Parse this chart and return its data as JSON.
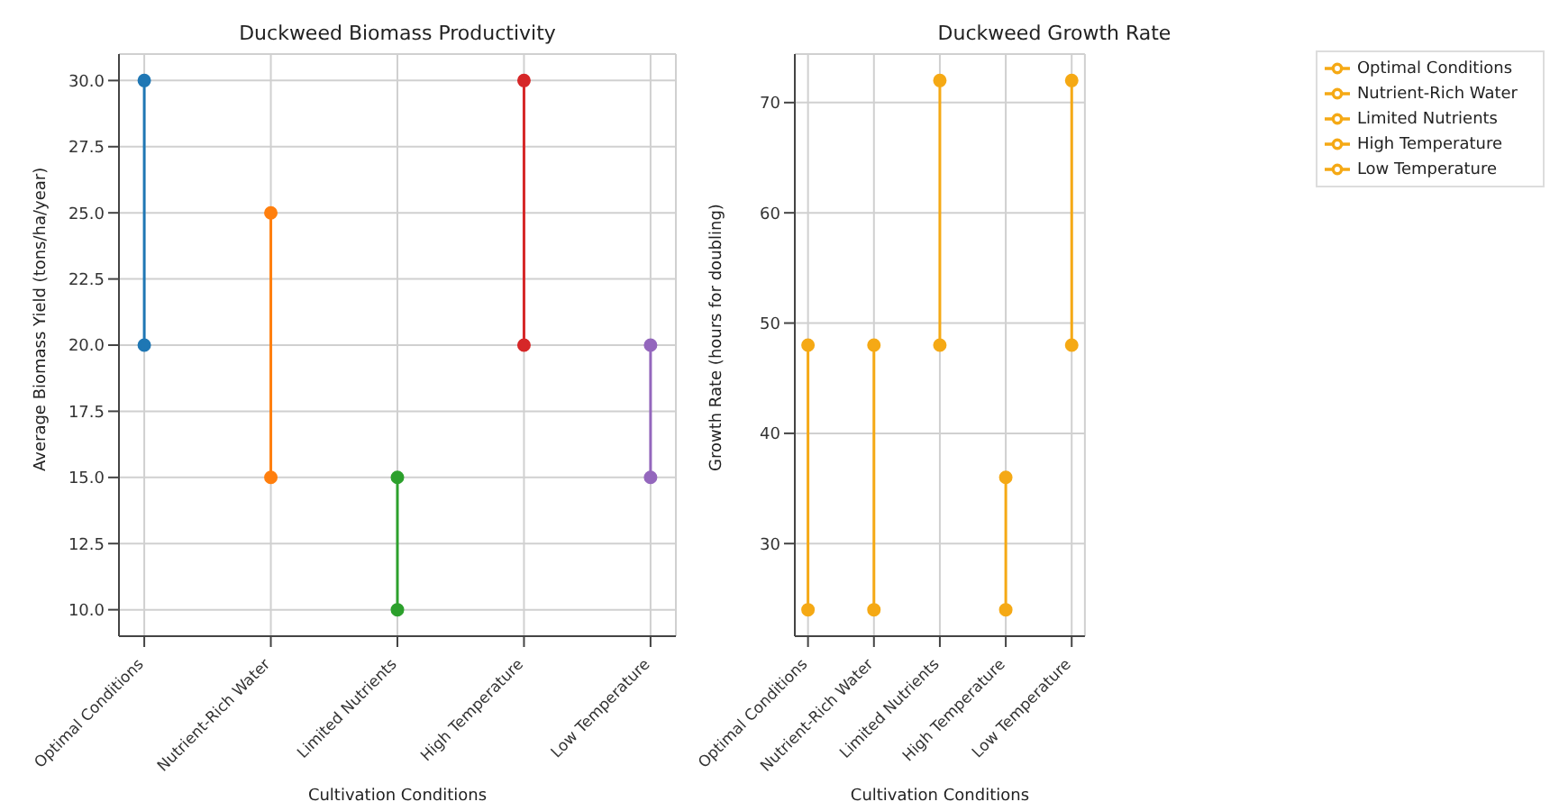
{
  "chart_data": [
    {
      "type": "line",
      "title": "Duckweed Biomass Productivity",
      "xlabel": "Cultivation Conditions",
      "ylabel": "Average Biomass Yield (tons/ha/year)",
      "categories": [
        "Optimal Conditions",
        "Nutrient-Rich Water",
        "Limited Nutrients",
        "High Temperature",
        "Low Temperature"
      ],
      "ylim": [
        9,
        31
      ],
      "yticks": [
        {
          "value": 10,
          "label": "10.0"
        },
        {
          "value": 12.5,
          "label": "12.5"
        },
        {
          "value": 15,
          "label": "15.0"
        },
        {
          "value": 17.5,
          "label": "17.5"
        },
        {
          "value": 20,
          "label": "20.0"
        },
        {
          "value": 22.5,
          "label": "22.5"
        },
        {
          "value": 25,
          "label": "25.0"
        },
        {
          "value": 27.5,
          "label": "27.5"
        },
        {
          "value": 30,
          "label": "30.0"
        }
      ],
      "grid": true,
      "marker": "circle",
      "legend": false,
      "series": [
        {
          "color": "#1f77b4",
          "x": [
            "Optimal Conditions",
            "Optimal Conditions"
          ],
          "values": [
            20,
            30
          ]
        },
        {
          "color": "#ff7f0e",
          "x": [
            "Nutrient-Rich Water",
            "Nutrient-Rich Water"
          ],
          "values": [
            15,
            25
          ]
        },
        {
          "color": "#2ca02c",
          "x": [
            "Limited Nutrients",
            "Limited Nutrients"
          ],
          "values": [
            10,
            15
          ]
        },
        {
          "color": "#d62728",
          "x": [
            "High Temperature",
            "High Temperature"
          ],
          "values": [
            20,
            30
          ]
        },
        {
          "color": "#9467bd",
          "x": [
            "Low Temperature",
            "Low Temperature"
          ],
          "values": [
            15,
            20
          ]
        }
      ]
    },
    {
      "type": "line",
      "title": "Duckweed Growth Rate",
      "xlabel": "Cultivation Conditions",
      "ylabel": "Growth Rate (hours for doubling)",
      "categories": [
        "Optimal Conditions",
        "Nutrient-Rich Water",
        "Limited Nutrients",
        "High Temperature",
        "Low Temperature"
      ],
      "ylim": [
        21.6,
        74.4
      ],
      "yticks": [
        30,
        40,
        50,
        60,
        70
      ],
      "grid": true,
      "marker": "circle",
      "legend": "right",
      "series": [
        {
          "name": "Optimal Conditions",
          "color": "#f5a915",
          "x": [
            "Optimal Conditions",
            "Optimal Conditions"
          ],
          "values": [
            24,
            48
          ]
        },
        {
          "name": "Nutrient-Rich Water",
          "color": "#f5a915",
          "x": [
            "Nutrient-Rich Water",
            "Nutrient-Rich Water"
          ],
          "values": [
            24,
            48
          ]
        },
        {
          "name": "Limited Nutrients",
          "color": "#f5a915",
          "x": [
            "Limited Nutrients",
            "Limited Nutrients"
          ],
          "values": [
            48,
            72
          ]
        },
        {
          "name": "High Temperature",
          "color": "#f5a915",
          "x": [
            "High Temperature",
            "High Temperature"
          ],
          "values": [
            24,
            36
          ]
        },
        {
          "name": "Low Temperature",
          "color": "#f5a915",
          "x": [
            "Low Temperature",
            "Low Temperature"
          ],
          "values": [
            48,
            72
          ]
        }
      ]
    }
  ]
}
